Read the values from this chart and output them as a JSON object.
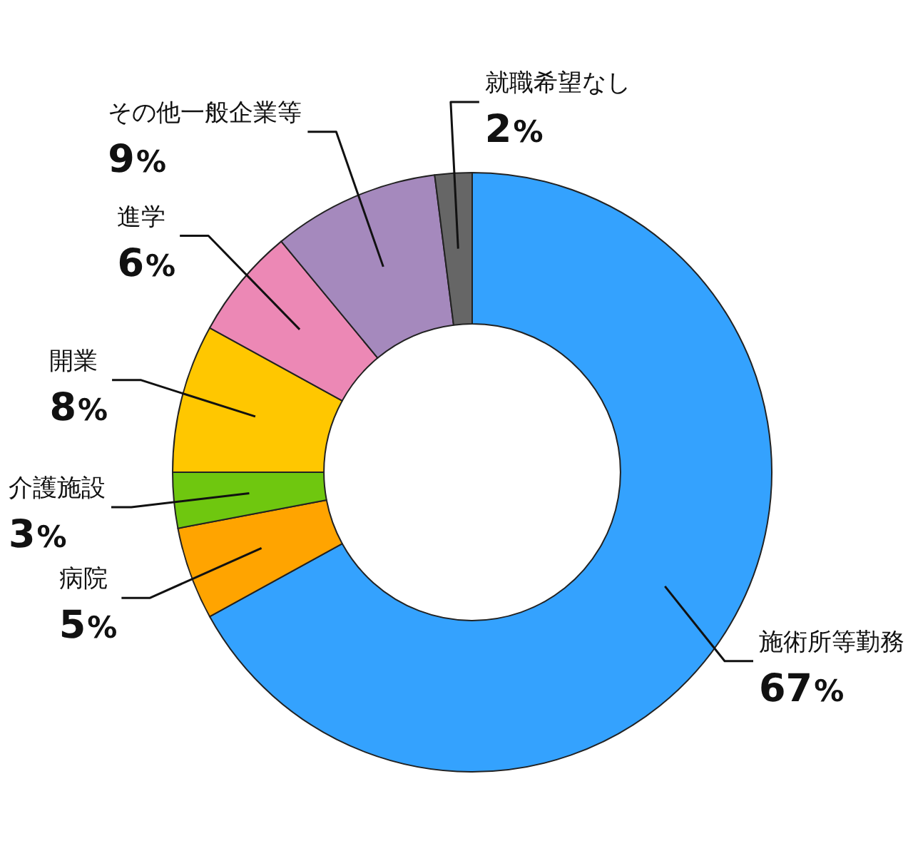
{
  "chart_data": {
    "type": "donut",
    "categories": [
      "施術所等勤務",
      "病院",
      "介護施設",
      "開業",
      "進学",
      "その他一般企業等",
      "就職希望なし"
    ],
    "values": [
      67,
      5,
      3,
      8,
      6,
      9,
      2
    ],
    "colors": [
      "#34a2fe",
      "#ffa400",
      "#6fc70f",
      "#ffc700",
      "#ec88b5",
      "#a589bd",
      "#666666"
    ],
    "value_labels": [
      "67%",
      "5%",
      "3%",
      "8%",
      "6%",
      "9%",
      "2%"
    ]
  }
}
